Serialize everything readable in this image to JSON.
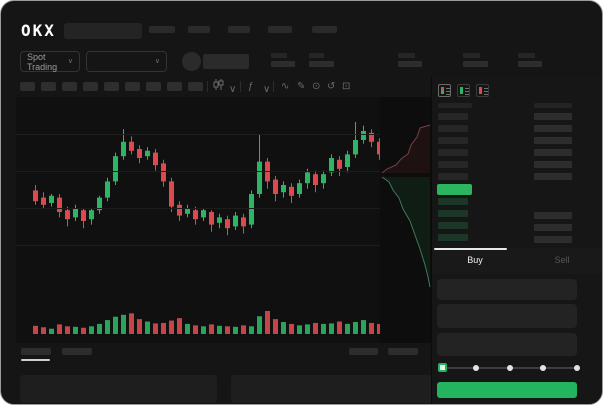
{
  "brand": {
    "logo_text": "OKX"
  },
  "trading_controls": {
    "market_selector_label": "Spot Trading"
  },
  "icons": {
    "chevron_down": "∨",
    "indicators": "ƒ",
    "line_tool": "∿",
    "draw": "✎",
    "camera": "⊙",
    "reset": "↺",
    "fullscreen": "⊡"
  },
  "toolbar": {
    "timeframe_slots": 9
  },
  "order_book": {
    "view_modes": [
      "combined-book",
      "bids-book",
      "asks-book"
    ],
    "ask_rows": 6,
    "bid_rows": 4,
    "last_price_color": "#2cb561"
  },
  "order_form": {
    "buy_tab": "Buy",
    "sell_tab": "Sell",
    "active_tab": "Buy",
    "field_count": 3,
    "slider": {
      "stops": 5,
      "value_percent": 0
    }
  },
  "colors": {
    "accent_green": "#22b45f",
    "candle_up": "#2db566",
    "candle_down": "#dc4a50",
    "bid_row_tint": "#1c3627",
    "depth_ask_line": "#7a4044",
    "depth_bid_line": "#3e7a58"
  },
  "chart_data": {
    "type": "candlestick",
    "title": "",
    "xlabel": "",
    "ylabel": "",
    "scale_note": "normalized 0-100 (no axis labels visible in screenshot)",
    "x_count": 45,
    "candles_ohlc": [
      [
        57,
        60,
        49,
        51
      ],
      [
        53,
        56,
        47,
        49
      ],
      [
        50,
        55,
        48,
        54
      ],
      [
        53,
        55,
        42,
        45
      ],
      [
        46,
        48,
        37,
        41
      ],
      [
        42,
        49,
        40,
        47
      ],
      [
        46,
        47,
        36,
        40
      ],
      [
        41,
        47,
        38,
        46
      ],
      [
        46,
        54,
        44,
        53
      ],
      [
        53,
        64,
        51,
        62
      ],
      [
        62,
        78,
        60,
        76
      ],
      [
        76,
        91,
        74,
        84
      ],
      [
        84,
        87,
        77,
        79
      ],
      [
        80,
        82,
        72,
        75
      ],
      [
        76,
        81,
        74,
        79
      ],
      [
        78,
        80,
        68,
        71
      ],
      [
        72,
        74,
        59,
        62
      ],
      [
        62,
        64,
        45,
        48
      ],
      [
        49,
        51,
        40,
        43
      ],
      [
        44,
        49,
        42,
        47
      ],
      [
        46,
        48,
        38,
        41
      ],
      [
        42,
        47,
        40,
        46
      ],
      [
        45,
        46,
        34,
        38
      ],
      [
        39,
        44,
        36,
        42
      ],
      [
        41,
        43,
        32,
        36
      ],
      [
        37,
        45,
        35,
        43
      ],
      [
        42,
        44,
        33,
        37
      ],
      [
        38,
        57,
        36,
        55
      ],
      [
        55,
        88,
        53,
        73
      ],
      [
        73,
        75,
        58,
        62
      ],
      [
        63,
        65,
        51,
        55
      ],
      [
        56,
        62,
        53,
        60
      ],
      [
        59,
        61,
        50,
        54
      ],
      [
        55,
        63,
        53,
        61
      ],
      [
        61,
        69,
        58,
        67
      ],
      [
        66,
        68,
        56,
        60
      ],
      [
        61,
        68,
        58,
        66
      ],
      [
        67,
        77,
        65,
        75
      ],
      [
        74,
        76,
        65,
        69
      ],
      [
        70,
        79,
        67,
        77
      ],
      [
        77,
        95,
        75,
        85
      ],
      [
        85,
        93,
        83,
        90
      ],
      [
        89,
        91,
        81,
        84
      ],
      [
        84,
        86,
        74,
        77
      ],
      [
        77,
        79,
        65,
        70
      ]
    ],
    "volumes": [
      34,
      28,
      22,
      40,
      32,
      30,
      26,
      32,
      42,
      58,
      72,
      80,
      86,
      62,
      52,
      44,
      46,
      56,
      66,
      42,
      36,
      32,
      40,
      34,
      32,
      30,
      36,
      32,
      74,
      96,
      62,
      50,
      42,
      36,
      40,
      46,
      42,
      44,
      52,
      42,
      50,
      58,
      46,
      42,
      36
    ],
    "depth": {
      "asks_points": [
        [
          50,
          28
        ],
        [
          40,
          31
        ],
        [
          37,
          40
        ],
        [
          31,
          48
        ],
        [
          28,
          57
        ],
        [
          21,
          62
        ],
        [
          16,
          68
        ],
        [
          7,
          72
        ],
        [
          2,
          76
        ]
      ],
      "bids_points": [
        [
          2,
          80
        ],
        [
          9,
          85
        ],
        [
          13,
          93
        ],
        [
          19,
          101
        ],
        [
          23,
          112
        ],
        [
          30,
          124
        ],
        [
          35,
          138
        ],
        [
          40,
          152
        ],
        [
          45,
          168
        ],
        [
          48,
          180
        ],
        [
          50,
          190
        ]
      ]
    },
    "legend": [],
    "grid": true
  }
}
